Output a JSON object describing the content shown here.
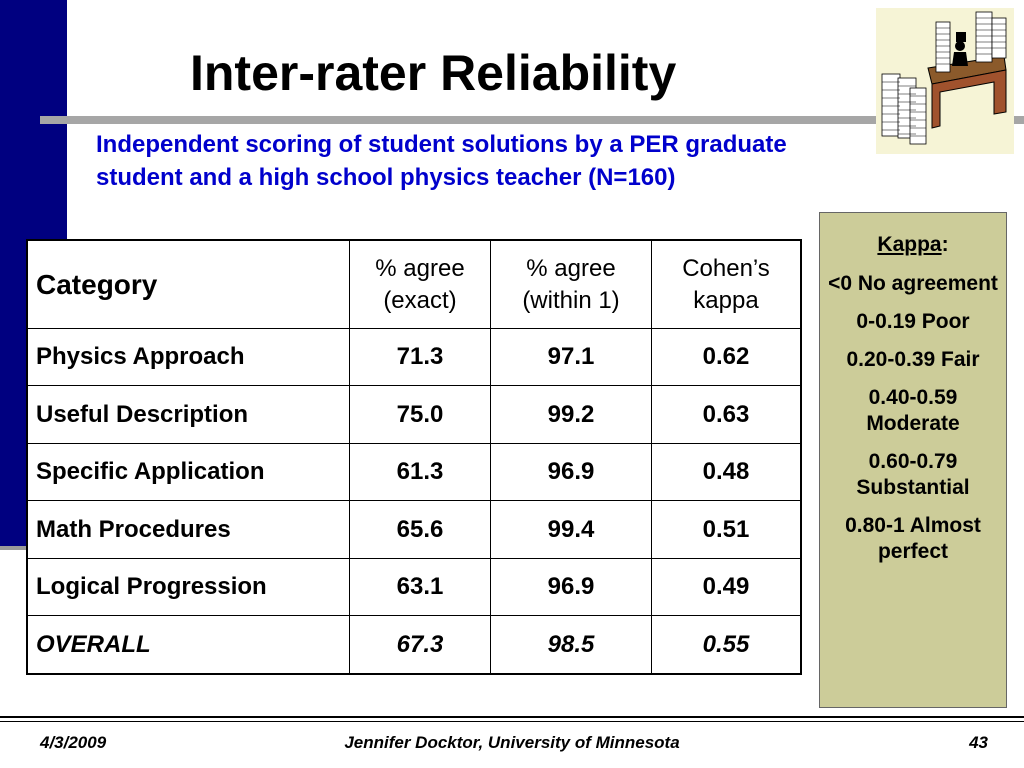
{
  "title": "Inter-rater Reliability",
  "subtitle": "Independent scoring of student solutions by a PER graduate student and a high school physics teacher (N=160)",
  "table": {
    "headers": [
      "Category",
      "% agree (exact)",
      "% agree (within 1)",
      "Cohen’s kappa"
    ],
    "rows": [
      [
        "Physics Approach",
        "71.3",
        "97.1",
        "0.62"
      ],
      [
        "Useful Description",
        "75.0",
        "99.2",
        "0.63"
      ],
      [
        "Specific Application",
        "61.3",
        "96.9",
        "0.48"
      ],
      [
        "Math Procedures",
        "65.6",
        "99.4",
        "0.51"
      ],
      [
        "Logical Progression",
        "63.1",
        "96.9",
        "0.49"
      ]
    ],
    "overall": [
      "OVERALL",
      "67.3",
      "98.5",
      "0.55"
    ]
  },
  "kappa_legend": {
    "heading": "Kappa",
    "heading_suffix": ":",
    "items": [
      "<0 No agreement",
      "0-0.19 Poor",
      "0.20-0.39 Fair",
      "0.40-0.59 Moderate",
      "0.60-0.79 Substantial",
      "0.80-1 Almost perfect"
    ]
  },
  "footer": {
    "date": "4/3/2009",
    "author": "Jennifer Docktor, University of Minnesota",
    "page": "43"
  },
  "colors": {
    "left_bar": "#000080",
    "subtitle": "#0000cc",
    "kappa_box": "#cccc99",
    "rule_gray": "#a6a6a6"
  },
  "icons": {
    "clipart": "office-desk-paper-stacks-icon"
  }
}
